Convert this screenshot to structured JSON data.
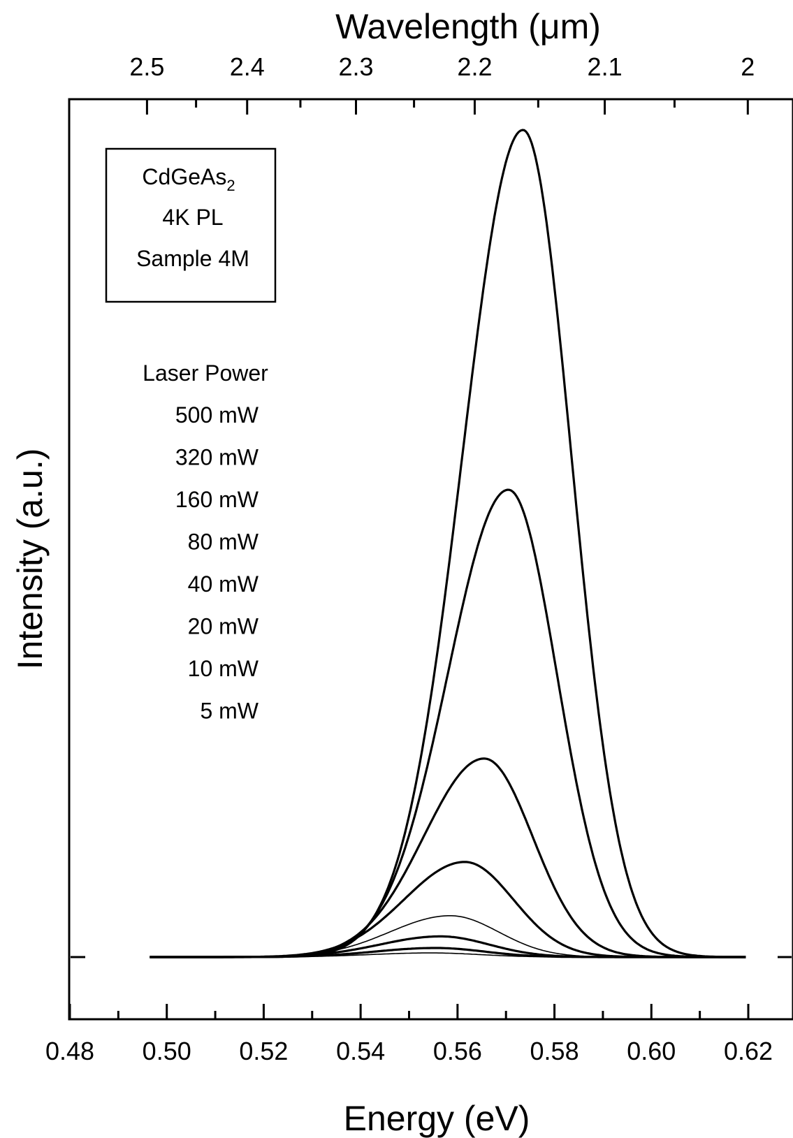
{
  "chart_data": {
    "type": "line",
    "xlabel": "Energy (eV)",
    "ylabel": "Intensity (a.u.)",
    "top_xlabel": "Wavelength (μm)",
    "xlim": [
      0.48,
      0.62
    ],
    "x_ticks": [
      "0.48",
      "0.50",
      "0.52",
      "0.54",
      "0.56",
      "0.58",
      "0.60",
      "0.62"
    ],
    "top_ticks": [
      {
        "label": "2.5",
        "value": 2.5
      },
      {
        "label": "2.4",
        "value": 2.4
      },
      {
        "label": "2.3",
        "value": 2.3
      },
      {
        "label": "2.2",
        "value": 2.2
      },
      {
        "label": "2.1",
        "value": 2.1
      },
      {
        "label": "2",
        "value": 2.0
      }
    ],
    "y_ticks": "none",
    "sample_box": [
      "CdGeAs",
      "4K PL",
      "Sample 4M"
    ],
    "sample_box_subscript": "2",
    "legend_title": "Laser Power",
    "series": [
      {
        "name": "500 mW",
        "peak_energy": 0.5735,
        "peak_intensity": 1.0,
        "line_width": "thick"
      },
      {
        "name": "320 mW",
        "peak_energy": 0.5705,
        "peak_intensity": 0.565,
        "line_width": "thick"
      },
      {
        "name": "160 mW",
        "peak_energy": 0.5655,
        "peak_intensity": 0.24,
        "line_width": "thick"
      },
      {
        "name": "80 mW",
        "peak_energy": 0.5615,
        "peak_intensity": 0.115,
        "line_width": "thick"
      },
      {
        "name": "40 mW",
        "peak_energy": 0.5585,
        "peak_intensity": 0.05,
        "line_width": "thin"
      },
      {
        "name": "20 mW",
        "peak_energy": 0.5565,
        "peak_intensity": 0.025,
        "line_width": "thick"
      },
      {
        "name": "10 mW",
        "peak_energy": 0.5555,
        "peak_intensity": 0.011,
        "line_width": "thick"
      },
      {
        "name": "5 mW",
        "peak_energy": 0.5545,
        "peak_intensity": 0.005,
        "line_width": "thin"
      }
    ],
    "x_data_range": [
      0.4965,
      0.6195
    ],
    "grid": false
  }
}
